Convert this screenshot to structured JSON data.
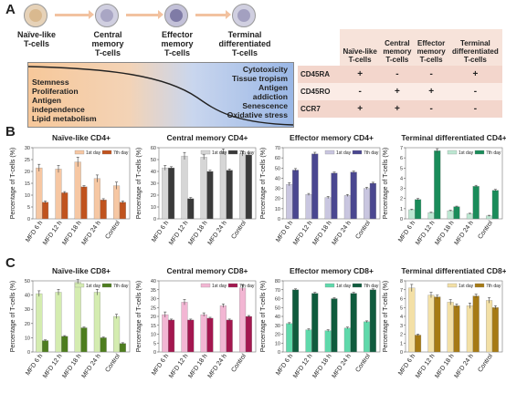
{
  "panel_a": {
    "letter": "A",
    "cells": [
      {
        "label1": "Naïve-like",
        "label2": "T-cells",
        "fill": "#d9b98f",
        "ring": "#e6d2b8"
      },
      {
        "label1": "Central",
        "label2": "memory",
        "label3": "T-cells",
        "fill": "#a9a6c4",
        "ring": "#d0cfe0"
      },
      {
        "label1": "Effector",
        "label2": "memory",
        "label3": "T-cells",
        "fill": "#7f7ba6",
        "ring": "#c3c1d8"
      },
      {
        "label1": "Terminal",
        "label2": "differentiated",
        "label3": "T-cells",
        "fill": "#a3a0c0",
        "ring": "#d0cfe0"
      }
    ],
    "left_traits": [
      "Stemness",
      "Proliferation",
      "Antigen",
      "independence",
      "Lipid metabolism"
    ],
    "right_traits": [
      "Cytotoxicity",
      "Tissue tropism",
      "Antigen",
      "addiction",
      "Senescence",
      "Oxidative stress"
    ],
    "marker_table": {
      "headers": [
        [
          "Naïve-like",
          "T-cells"
        ],
        [
          "Central",
          "memory",
          "T-cells"
        ],
        [
          "Effector",
          "memory",
          "T-cells"
        ],
        [
          "Terminal",
          "differentiated",
          "T-cells"
        ]
      ],
      "rows": [
        {
          "name": "CD45RA",
          "values": [
            "+",
            "-",
            "-",
            "+"
          ]
        },
        {
          "name": "CD45RO",
          "values": [
            "-",
            "+",
            "+",
            "-"
          ]
        },
        {
          "name": "CCR7",
          "values": [
            "+",
            "+",
            "-",
            "-"
          ]
        }
      ]
    }
  },
  "panel_b_letter": "B",
  "panel_c_letter": "C",
  "chart_data": [
    {
      "type": "bar",
      "title": "Naïve-like CD4+",
      "ylabel": "Percentage of T-cells (%)",
      "categories": [
        "MFD 6 h",
        "MFD 12 h",
        "MFD 18 h",
        "MFD 24 h",
        "Control"
      ],
      "ylim": [
        0,
        30
      ],
      "yticks": [
        0,
        5,
        10,
        15,
        20,
        25,
        30
      ],
      "legend": {
        "position": "top-right",
        "labels": [
          "1st day",
          "7th day"
        ]
      },
      "series": [
        {
          "name": "1st day",
          "color": "#f6c7a3",
          "values": [
            21.5,
            21,
            24,
            17,
            14
          ],
          "errors": [
            1.5,
            1.5,
            2,
            1.5,
            1.5
          ]
        },
        {
          "name": "7th day",
          "color": "#c0531e",
          "values": [
            7,
            11,
            13.5,
            8,
            7
          ],
          "errors": [
            0.5,
            0.5,
            0.5,
            0.5,
            0.5
          ]
        }
      ]
    },
    {
      "type": "bar",
      "title": "Central memory CD4+",
      "ylabel": "Percentage of T-cells (%)",
      "categories": [
        "MFD 6 h",
        "MFD 12 h",
        "MFD 18 h",
        "MFD 24 h",
        "Control"
      ],
      "ylim": [
        0,
        60
      ],
      "yticks": [
        0,
        10,
        20,
        30,
        40,
        50,
        60
      ],
      "legend": {
        "position": "top-right",
        "labels": [
          "1st day",
          "7th day"
        ]
      },
      "series": [
        {
          "name": "1st day",
          "color": "#d6d6d6",
          "values": [
            43,
            53,
            52,
            57,
            55
          ],
          "errors": [
            2,
            3,
            2,
            2,
            2
          ]
        },
        {
          "name": "7th day",
          "color": "#3a3a3a",
          "values": [
            43,
            17,
            40,
            41,
            54
          ],
          "errors": [
            1,
            1,
            1,
            1,
            1.5
          ]
        }
      ]
    },
    {
      "type": "bar",
      "title": "Effector memory CD4+",
      "ylabel": "Percentage of T-cells (%)",
      "categories": [
        "MFD 6 h",
        "MFD 12 h",
        "MFD 18 h",
        "MFD 24 h",
        "Control"
      ],
      "ylim": [
        0,
        70
      ],
      "yticks": [
        0,
        10,
        20,
        30,
        40,
        50,
        60,
        70
      ],
      "legend": {
        "position": "top-right",
        "labels": [
          "1st day",
          "7th day"
        ]
      },
      "series": [
        {
          "name": "1st day",
          "color": "#c9c6e0",
          "values": [
            34,
            24,
            21,
            23,
            30
          ],
          "errors": [
            1.5,
            1,
            1,
            1,
            1
          ]
        },
        {
          "name": "7th day",
          "color": "#4a4790",
          "values": [
            48,
            64,
            45,
            46,
            35
          ],
          "errors": [
            1.5,
            1.5,
            1,
            1,
            1
          ]
        }
      ]
    },
    {
      "type": "bar",
      "title": "Terminal differentiated CD4+",
      "ylabel": "Percentage of T-cells (%)",
      "categories": [
        "MFD 6 h",
        "MFD 12 h",
        "MFD 18 h",
        "MFD 24 h",
        "Control"
      ],
      "ylim": [
        0,
        7
      ],
      "yticks": [
        0,
        1,
        2,
        3,
        4,
        5,
        6,
        7
      ],
      "legend": {
        "position": "top-right",
        "labels": [
          "1st day",
          "7th day"
        ]
      },
      "series": [
        {
          "name": "1st day",
          "color": "#bde7d2",
          "values": [
            0.9,
            0.6,
            0.8,
            0.5,
            0.3
          ],
          "errors": [
            0.05,
            0.05,
            0.05,
            0.05,
            0.05
          ]
        },
        {
          "name": "7th day",
          "color": "#1a8c5a",
          "values": [
            1.9,
            6.7,
            1.2,
            3.2,
            2.8
          ],
          "errors": [
            0.1,
            0.2,
            0.05,
            0.1,
            0.1
          ]
        }
      ]
    },
    {
      "type": "bar",
      "title": "Naïve-like CD8+",
      "ylabel": "Percentage of T-cells (%)",
      "categories": [
        "MFD 6 h",
        "MFD 12 h",
        "MFD 18 h",
        "MFD 24 h",
        "Control"
      ],
      "ylim": [
        0,
        50
      ],
      "yticks": [
        0,
        10,
        20,
        30,
        40,
        50
      ],
      "legend": {
        "position": "top-right",
        "labels": [
          "1st day",
          "7th day"
        ]
      },
      "series": [
        {
          "name": "1st day",
          "color": "#d4ecb0",
          "values": [
            41,
            42,
            49,
            42,
            25
          ],
          "errors": [
            2,
            2,
            2,
            2,
            1.5
          ]
        },
        {
          "name": "7th day",
          "color": "#4d7d1e",
          "values": [
            8,
            11,
            17,
            10,
            6
          ],
          "errors": [
            0.5,
            0.5,
            0.5,
            0.5,
            0.5
          ]
        }
      ]
    },
    {
      "type": "bar",
      "title": "Central memory CD8+",
      "ylabel": "Percentage of T-cells (%)",
      "categories": [
        "MFD 6 h",
        "MFD 12 h",
        "MFD 18 h",
        "MFD 24 h",
        "Control"
      ],
      "ylim": [
        0,
        40
      ],
      "yticks": [
        0,
        5,
        10,
        15,
        20,
        25,
        30,
        35,
        40
      ],
      "legend": {
        "position": "top-right",
        "labels": [
          "1st day",
          "7th day"
        ]
      },
      "series": [
        {
          "name": "1st day",
          "color": "#f2b6d3",
          "values": [
            21,
            28,
            21,
            26,
            36
          ],
          "errors": [
            1.5,
            1.5,
            1,
            1,
            1.5
          ]
        },
        {
          "name": "7th day",
          "color": "#a3174f",
          "values": [
            18,
            18,
            19,
            18,
            20
          ],
          "errors": [
            0.5,
            0.5,
            0.5,
            0.5,
            0.5
          ]
        }
      ]
    },
    {
      "type": "bar",
      "title": "Effector memory CD8+",
      "ylabel": "Percentage of T-cells (%)",
      "categories": [
        "MFD 6 h",
        "MFD 12 h",
        "MFD 18 h",
        "MFD 24 h",
        "Control"
      ],
      "ylim": [
        0,
        80
      ],
      "yticks": [
        0,
        10,
        20,
        30,
        40,
        50,
        60,
        70,
        80
      ],
      "legend": {
        "position": "top-right",
        "labels": [
          "1st day",
          "7th day"
        ]
      },
      "series": [
        {
          "name": "1st day",
          "color": "#5fd9ab",
          "values": [
            32,
            25,
            24,
            27,
            34
          ],
          "errors": [
            1,
            1,
            1,
            1,
            1
          ]
        },
        {
          "name": "7th day",
          "color": "#0f5b3d",
          "values": [
            70,
            66,
            60,
            66,
            70
          ],
          "errors": [
            1,
            1,
            1,
            1,
            1
          ]
        }
      ]
    },
    {
      "type": "bar",
      "title": "Terminal differentiated CD8+",
      "ylabel": "Percentage of T-cells (%)",
      "categories": [
        "MFD 6 h",
        "MFD 12 h",
        "MFD 18 h",
        "MFD 24 h",
        "Control"
      ],
      "ylim": [
        0,
        8
      ],
      "yticks": [
        0,
        1,
        2,
        3,
        4,
        5,
        6,
        7,
        8
      ],
      "legend": {
        "position": "top-right",
        "labels": [
          "1st day",
          "7th day"
        ]
      },
      "series": [
        {
          "name": "1st day",
          "color": "#f3e0a6",
          "values": [
            7.2,
            6.4,
            5.6,
            5.2,
            5.8
          ],
          "errors": [
            0.4,
            0.3,
            0.3,
            0.3,
            0.3
          ]
        },
        {
          "name": "7th day",
          "color": "#a67a14",
          "values": [
            1.9,
            6.2,
            5.2,
            6.3,
            5.0
          ],
          "errors": [
            0.1,
            0.2,
            0.2,
            0.2,
            0.2
          ]
        }
      ]
    }
  ]
}
